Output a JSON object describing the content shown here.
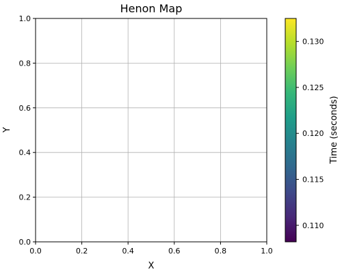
{
  "chart_data": {
    "type": "scatter",
    "title": "Henon Map",
    "xlabel": "X",
    "ylabel": "Y",
    "xlim": [
      0.0,
      1.0
    ],
    "ylim": [
      0.0,
      1.0
    ],
    "xticks": [
      0.0,
      0.2,
      0.4,
      0.6,
      0.8,
      1.0
    ],
    "yticks": [
      0.0,
      0.2,
      0.4,
      0.6,
      0.8,
      1.0
    ],
    "xtick_labels": [
      "0.0",
      "0.2",
      "0.4",
      "0.6",
      "0.8",
      "1.0"
    ],
    "ytick_labels": [
      "0.0",
      "0.2",
      "0.4",
      "0.6",
      "0.8",
      "1.0"
    ],
    "grid": true,
    "points": [],
    "colorbar": {
      "label": "Time  (seconds)",
      "colormap": "viridis",
      "range": [
        0.1082,
        0.1325
      ],
      "ticks": [
        0.11,
        0.115,
        0.12,
        0.125,
        0.13
      ],
      "tick_labels": [
        "0.110",
        "0.115",
        "0.120",
        "0.125",
        "0.130"
      ],
      "colors": [
        "#440154",
        "#482878",
        "#3e4989",
        "#31688e",
        "#26828e",
        "#1f9e89",
        "#35b779",
        "#6ece58",
        "#b5de2b",
        "#fde725"
      ]
    }
  }
}
